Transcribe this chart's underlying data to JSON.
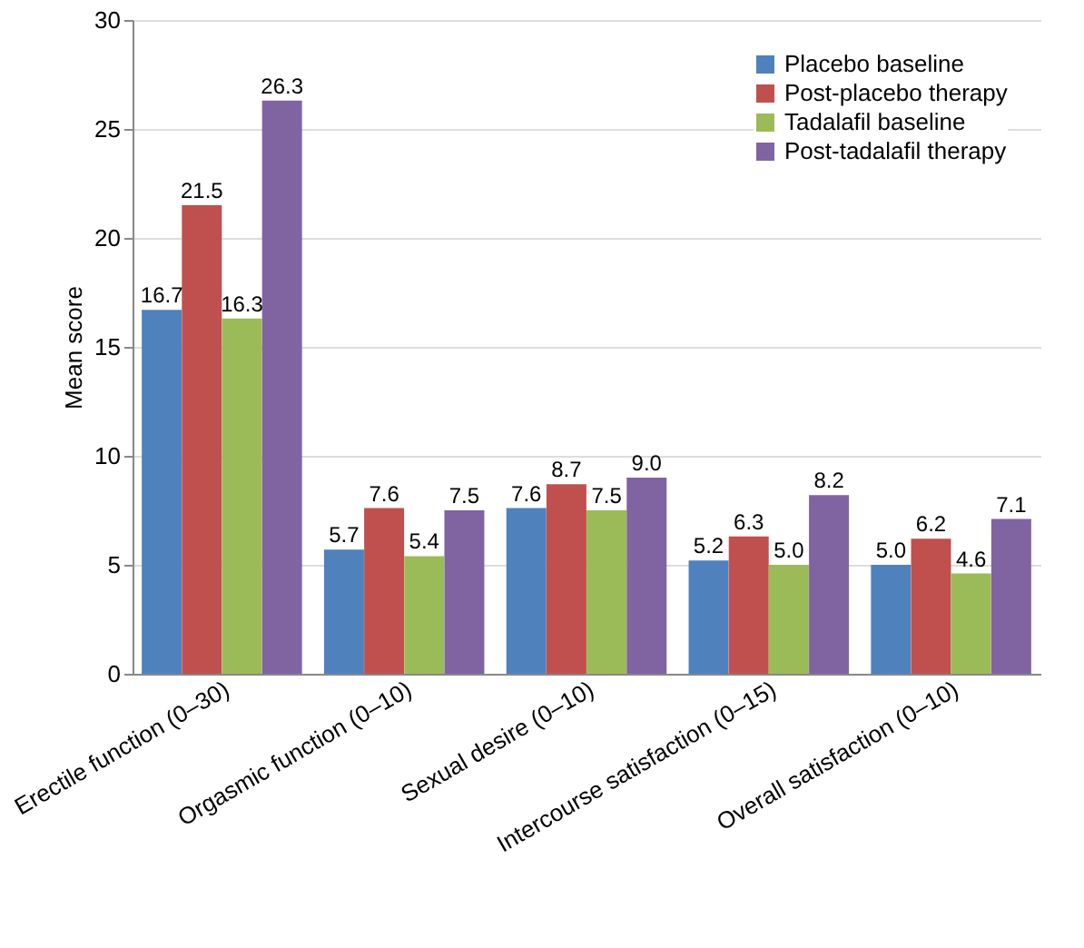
{
  "chart_data": {
    "type": "bar",
    "ylabel": "Mean score",
    "categories": [
      "Erectile function (0–30)",
      "Orgasmic function (0–10)",
      "Sexual desire (0–10)",
      "Intercourse satisfaction (0–15)",
      "Overall satisfaction (0–10)"
    ],
    "series": [
      {
        "name": "Placebo baseline",
        "color": "#4f81bd",
        "values": [
          16.7,
          5.7,
          7.6,
          5.2,
          5.0
        ],
        "value_labels": [
          "16.7",
          "5.7",
          "7.6",
          "5.2",
          "5.0"
        ]
      },
      {
        "name": "Post-placebo therapy",
        "color": "#c0504d",
        "values": [
          21.5,
          7.6,
          8.7,
          6.3,
          6.2
        ],
        "value_labels": [
          "21.5",
          "7.6",
          "8.7",
          "6.3",
          "6.2"
        ]
      },
      {
        "name": "Tadalafil baseline",
        "color": "#9bbb59",
        "values": [
          16.3,
          5.4,
          7.5,
          5.0,
          4.6
        ],
        "value_labels": [
          "16.3",
          "5.4",
          "7.5",
          "5.0",
          "4.6"
        ]
      },
      {
        "name": "Post-tadalafil therapy",
        "color": "#8064a2",
        "values": [
          26.3,
          7.5,
          9.0,
          8.2,
          7.1
        ],
        "value_labels": [
          "26.3",
          "7.5",
          "9.0",
          "8.2",
          "7.1"
        ]
      }
    ],
    "ylim": [
      0,
      30
    ],
    "yticks": [
      0,
      5,
      10,
      15,
      20,
      25,
      30
    ],
    "grid": "y",
    "legend": "top right"
  }
}
